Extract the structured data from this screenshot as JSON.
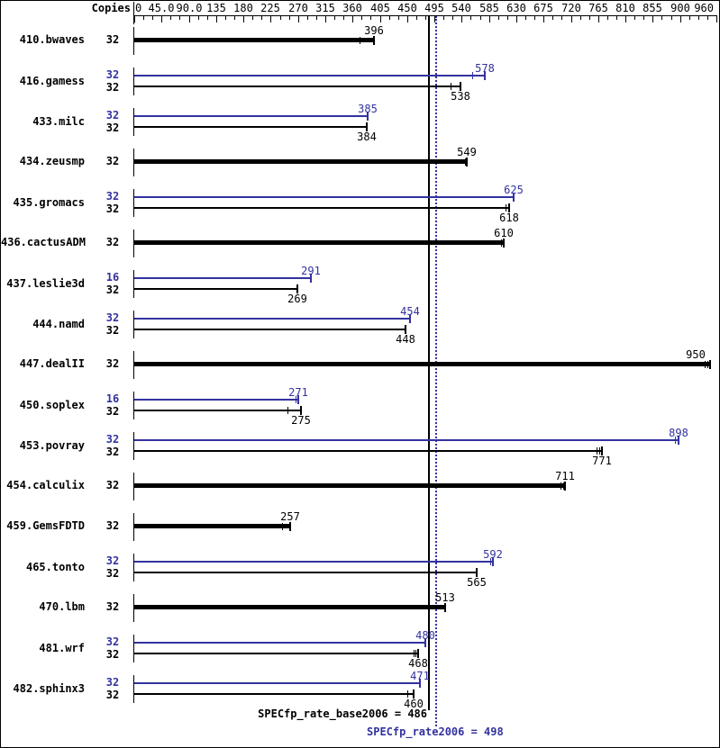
{
  "header": {
    "copies_label": "Copies"
  },
  "footer": {
    "base_summary": "SPECfp_rate_base2006 = 486",
    "peak_summary": "SPECfp_rate2006 = 498"
  },
  "colors": {
    "base": "#000000",
    "peak": "#3232a0",
    "background": "#ffffff"
  },
  "chart_data": {
    "type": "bar",
    "orientation": "horizontal",
    "xlabel": "Copies",
    "axis": {
      "min": 0,
      "max": 960,
      "minor_tick_step": 15,
      "major_ticks": [
        {
          "value": 0,
          "label": "0"
        },
        {
          "value": 45,
          "label": "45.0"
        },
        {
          "value": 90,
          "label": "90.0"
        },
        {
          "value": 135,
          "label": "135"
        },
        {
          "value": 180,
          "label": "180"
        },
        {
          "value": 225,
          "label": "225"
        },
        {
          "value": 270,
          "label": "270"
        },
        {
          "value": 315,
          "label": "315"
        },
        {
          "value": 360,
          "label": "360"
        },
        {
          "value": 405,
          "label": "405"
        },
        {
          "value": 450,
          "label": "450"
        },
        {
          "value": 495,
          "label": "495"
        },
        {
          "value": 540,
          "label": "540"
        },
        {
          "value": 585,
          "label": "585"
        },
        {
          "value": 630,
          "label": "630"
        },
        {
          "value": 675,
          "label": "675"
        },
        {
          "value": 720,
          "label": "720"
        },
        {
          "value": 765,
          "label": "765"
        },
        {
          "value": 810,
          "label": "810"
        },
        {
          "value": 855,
          "label": "855"
        },
        {
          "value": 900,
          "label": "900"
        },
        {
          "value": 960,
          "label": "960"
        }
      ]
    },
    "reference_lines": [
      {
        "name": "SPECfp_rate_base2006",
        "value": 486,
        "style": "solid",
        "color": "#000000"
      },
      {
        "name": "SPECfp_rate2006",
        "value": 498,
        "style": "dotted",
        "color": "#3232a0"
      }
    ],
    "series_legend": [
      {
        "name": "peak",
        "color": "#3232a0",
        "thickness": 2
      },
      {
        "name": "base",
        "color": "#000000",
        "thickness": 2
      },
      {
        "name": "base-only",
        "color": "#000000",
        "thickness": 5
      }
    ],
    "benchmarks": [
      {
        "name": "410.bwaves",
        "bars": [
          {
            "series": "base",
            "copies": 32,
            "value": 396,
            "thick": true,
            "marks": [
              371
            ]
          }
        ]
      },
      {
        "name": "416.gamess",
        "bars": [
          {
            "series": "peak",
            "copies": 32,
            "value": 578,
            "marks": [
              557
            ]
          },
          {
            "series": "base",
            "copies": 32,
            "value": 538,
            "marks": [
              521
            ]
          }
        ]
      },
      {
        "name": "433.milc",
        "bars": [
          {
            "series": "peak",
            "copies": 32,
            "value": 385,
            "marks": []
          },
          {
            "series": "base",
            "copies": 32,
            "value": 384,
            "marks": []
          }
        ]
      },
      {
        "name": "434.zeusmp",
        "bars": [
          {
            "series": "base",
            "copies": 32,
            "value": 549,
            "thick": true,
            "marks": [
              545
            ]
          }
        ]
      },
      {
        "name": "435.gromacs",
        "bars": [
          {
            "series": "peak",
            "copies": 32,
            "value": 625,
            "marks": []
          },
          {
            "series": "base",
            "copies": 32,
            "value": 618,
            "marks": [
              612
            ]
          }
        ]
      },
      {
        "name": "436.cactusADM",
        "bars": [
          {
            "series": "base",
            "copies": 32,
            "value": 610,
            "thick": true,
            "marks": [
              605
            ]
          }
        ]
      },
      {
        "name": "437.leslie3d",
        "bars": [
          {
            "series": "peak",
            "copies": 16,
            "value": 291,
            "marks": []
          },
          {
            "series": "base",
            "copies": 32,
            "value": 269,
            "marks": []
          }
        ]
      },
      {
        "name": "444.namd",
        "bars": [
          {
            "series": "peak",
            "copies": 32,
            "value": 454,
            "marks": []
          },
          {
            "series": "base",
            "copies": 32,
            "value": 448,
            "marks": []
          }
        ]
      },
      {
        "name": "447.dealII",
        "bars": [
          {
            "series": "base",
            "copies": 32,
            "value": 950,
            "thick": true,
            "marks": [
              941,
              945
            ]
          }
        ]
      },
      {
        "name": "450.soplex",
        "bars": [
          {
            "series": "peak",
            "copies": 16,
            "value": 271,
            "marks": [
              266
            ]
          },
          {
            "series": "base",
            "copies": 32,
            "value": 275,
            "marks": [
              252
            ]
          }
        ]
      },
      {
        "name": "453.povray",
        "bars": [
          {
            "series": "peak",
            "copies": 32,
            "value": 898,
            "marks": [
              891
            ]
          },
          {
            "series": "base",
            "copies": 32,
            "value": 771,
            "marks": [
              763,
              767
            ]
          }
        ]
      },
      {
        "name": "454.calculix",
        "bars": [
          {
            "series": "base",
            "copies": 32,
            "value": 711,
            "thick": true,
            "marks": [
              703,
              707
            ]
          }
        ]
      },
      {
        "name": "459.GemsFDTD",
        "bars": [
          {
            "series": "base",
            "copies": 32,
            "value": 257,
            "thick": true,
            "marks": [
              244
            ]
          }
        ]
      },
      {
        "name": "465.tonto",
        "bars": [
          {
            "series": "peak",
            "copies": 32,
            "value": 592,
            "marks": [
              587
            ]
          },
          {
            "series": "base",
            "copies": 32,
            "value": 565,
            "marks": []
          }
        ]
      },
      {
        "name": "470.lbm",
        "bars": [
          {
            "series": "base",
            "copies": 32,
            "value": 513,
            "thick": true,
            "marks": []
          }
        ]
      },
      {
        "name": "481.wrf",
        "bars": [
          {
            "series": "peak",
            "copies": 32,
            "value": 480,
            "marks": []
          },
          {
            "series": "base",
            "copies": 32,
            "value": 468,
            "marks": [
              461,
              464
            ]
          }
        ]
      },
      {
        "name": "482.sphinx3",
        "bars": [
          {
            "series": "peak",
            "copies": 32,
            "value": 471,
            "marks": []
          },
          {
            "series": "base",
            "copies": 32,
            "value": 460,
            "marks": [
              450
            ]
          }
        ]
      }
    ]
  }
}
